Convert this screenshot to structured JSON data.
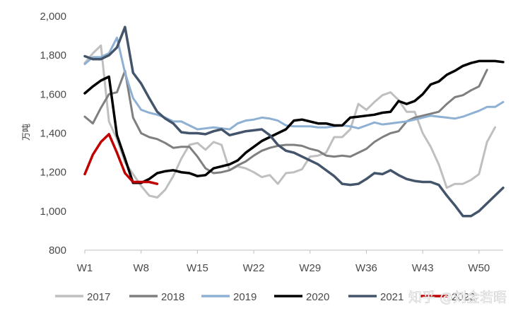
{
  "chart_data": {
    "type": "line",
    "title": "",
    "xlabel": "",
    "ylabel": "万吨",
    "ylim": [
      800,
      2000
    ],
    "yticks": [
      800,
      1000,
      1200,
      1400,
      1600,
      1800,
      2000
    ],
    "ytick_labels": [
      "800",
      "1,000",
      "1,200",
      "1,400",
      "1,600",
      "1,800",
      "2,000"
    ],
    "xrange": [
      1,
      53
    ],
    "xticks": [
      1,
      8,
      15,
      22,
      29,
      36,
      43,
      50
    ],
    "xtick_labels": [
      "W1",
      "W8",
      "W15",
      "W22",
      "W29",
      "W36",
      "W43",
      "W50"
    ],
    "grid": false,
    "legend_position": "bottom",
    "series": [
      {
        "name": "2017",
        "color": "#bfbfbf",
        "width": 3,
        "values": [
          1760,
          1810,
          1850,
          1460,
          1370,
          1250,
          1190,
          1130,
          1080,
          1070,
          1110,
          1180,
          1270,
          1340,
          1350,
          1315,
          1355,
          1340,
          1210,
          1230,
          1220,
          1200,
          1175,
          1185,
          1140,
          1195,
          1200,
          1215,
          1280,
          1285,
          1300,
          1380,
          1380,
          1420,
          1550,
          1520,
          1560,
          1595,
          1610,
          1570,
          1510,
          1510,
          1400,
          1330,
          1240,
          1120,
          1140,
          1140,
          1160,
          1190,
          1355,
          1430
        ]
      },
      {
        "name": "2018",
        "color": "#7f7f7f",
        "width": 3,
        "values": [
          1485,
          1450,
          1530,
          1600,
          1610,
          1720,
          1480,
          1400,
          1380,
          1370,
          1350,
          1325,
          1330,
          1330,
          1280,
          1220,
          1195,
          1200,
          1210,
          1235,
          1255,
          1285,
          1310,
          1325,
          1335,
          1340,
          1340,
          1335,
          1320,
          1310,
          1285,
          1280,
          1285,
          1280,
          1300,
          1320,
          1355,
          1380,
          1400,
          1410,
          1460,
          1480,
          1490,
          1500,
          1510,
          1550,
          1585,
          1595,
          1620,
          1640,
          1725
        ]
      },
      {
        "name": "2019",
        "color": "#8eb0d3",
        "width": 3,
        "values": [
          1755,
          1790,
          1790,
          1810,
          1890,
          1710,
          1580,
          1520,
          1505,
          1495,
          1480,
          1460,
          1460,
          1440,
          1420,
          1425,
          1430,
          1425,
          1420,
          1450,
          1465,
          1470,
          1480,
          1475,
          1465,
          1440,
          1435,
          1435,
          1435,
          1430,
          1430,
          1435,
          1440,
          1435,
          1425,
          1440,
          1455,
          1445,
          1450,
          1455,
          1460,
          1470,
          1480,
          1490,
          1485,
          1480,
          1475,
          1485,
          1500,
          1515,
          1535,
          1535,
          1560
        ]
      },
      {
        "name": "2020",
        "color": "#000000",
        "width": 3.5,
        "values": [
          1605,
          1640,
          1670,
          1690,
          1390,
          1270,
          1145,
          1145,
          1165,
          1195,
          1205,
          1210,
          1200,
          1195,
          1180,
          1185,
          1220,
          1230,
          1240,
          1260,
          1300,
          1330,
          1360,
          1380,
          1400,
          1420,
          1465,
          1470,
          1460,
          1450,
          1450,
          1440,
          1440,
          1480,
          1485,
          1490,
          1495,
          1505,
          1510,
          1565,
          1550,
          1565,
          1600,
          1650,
          1665,
          1700,
          1720,
          1745,
          1760,
          1770,
          1770,
          1770,
          1765
        ]
      },
      {
        "name": "2021",
        "color": "#44546a",
        "width": 3.5,
        "values": [
          1795,
          1780,
          1780,
          1800,
          1840,
          1945,
          1710,
          1655,
          1580,
          1510,
          1475,
          1450,
          1405,
          1400,
          1400,
          1395,
          1410,
          1420,
          1390,
          1400,
          1410,
          1415,
          1420,
          1390,
          1340,
          1310,
          1300,
          1280,
          1260,
          1240,
          1210,
          1180,
          1140,
          1135,
          1140,
          1165,
          1195,
          1190,
          1210,
          1185,
          1165,
          1155,
          1150,
          1150,
          1135,
          1080,
          1030,
          975,
          975,
          1000,
          1040,
          1080,
          1120
        ]
      },
      {
        "name": "2022",
        "color": "#c00000",
        "width": 3.5,
        "values": [
          1190,
          1290,
          1355,
          1395,
          1300,
          1195,
          1150,
          1150,
          1150,
          1140
        ]
      }
    ]
  },
  "legend": {
    "items": [
      {
        "label": "2017",
        "color": "#bfbfbf"
      },
      {
        "label": "2018",
        "color": "#7f7f7f"
      },
      {
        "label": "2019",
        "color": "#8eb0d3"
      },
      {
        "label": "2020",
        "color": "#000000"
      },
      {
        "label": "2021",
        "color": "#44546a"
      },
      {
        "label": "2022",
        "color": "#c00000"
      }
    ]
  },
  "watermark": {
    "text": "知乎 @刘金若晤"
  }
}
